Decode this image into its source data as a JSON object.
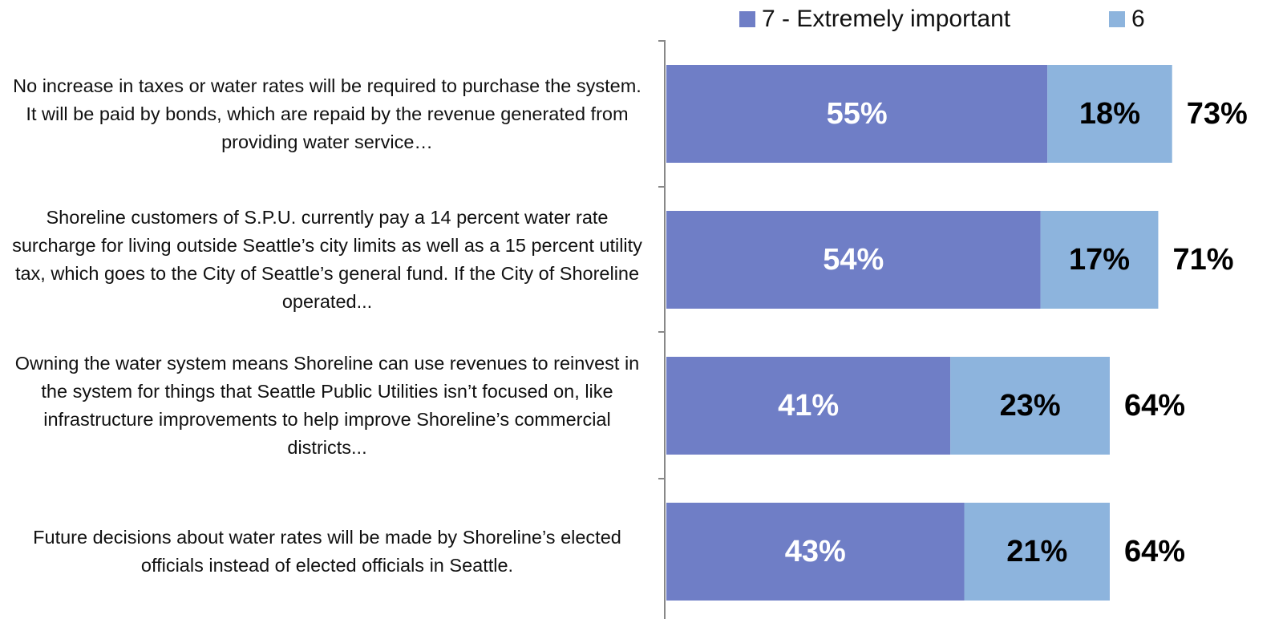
{
  "chart_data": {
    "type": "stacked_bar_horizontal",
    "categories": [
      "No increase in taxes or water rates will be required to purchase the system. It will be paid by bonds, which are repaid by the revenue generated from providing water service…",
      "Shoreline customers of S.P.U. currently pay a 14 percent water rate surcharge for living outside Seattle’s city limits as well as a 15 percent utility tax, which goes to the City of Seattle’s general fund. If the City of Shoreline operated...",
      "Owning the water system means Shoreline can use revenues to reinvest in the system for things that Seattle Public Utilities isn’t focused on, like infrastructure improvements to help improve Shoreline’s commercial districts...",
      "Future decisions about water rates will be made by Shoreline’s elected officials instead of elected officials in Seattle."
    ],
    "series": [
      {
        "name": "7 - Extremely important",
        "color": "#6f7ec6",
        "values": [
          55,
          54,
          41,
          43
        ],
        "value_labels": [
          "55%",
          "54%",
          "41%",
          "43%"
        ]
      },
      {
        "name": "6",
        "color": "#8db4dd",
        "values": [
          18,
          17,
          23,
          21
        ],
        "value_labels": [
          "18%",
          "17%",
          "23%",
          "21%"
        ]
      }
    ],
    "totals": [
      73,
      71,
      64,
      64
    ],
    "totals_labels": [
      "73%",
      "71%",
      "64%",
      "64%"
    ],
    "xlim": [
      0,
      100
    ],
    "legend": "top"
  }
}
